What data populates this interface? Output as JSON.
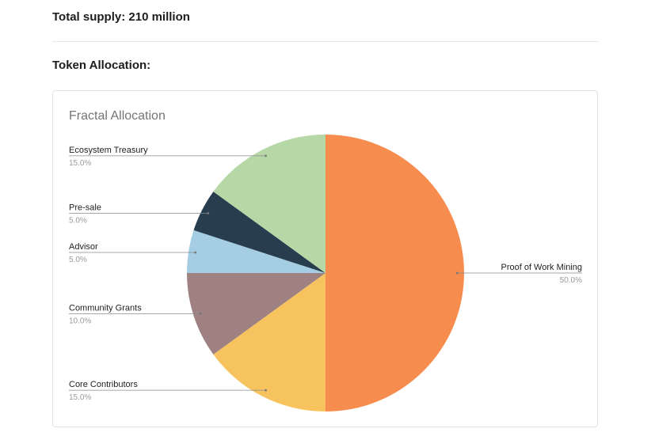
{
  "page": {
    "supply_text": "Total supply: 210 million",
    "allocation_heading": "Token Allocation:"
  },
  "chart_data": {
    "type": "pie",
    "title": "Fractal Allocation",
    "slices": [
      {
        "label": "Proof of Work Mining",
        "value": 50.0,
        "pct_label": "50.0%",
        "color": "#f68c4e"
      },
      {
        "label": "Core Contributors",
        "value": 15.0,
        "pct_label": "15.0%",
        "color": "#f7c35f"
      },
      {
        "label": "Community Grants",
        "value": 10.0,
        "pct_label": "10.0%",
        "color": "#9e8180"
      },
      {
        "label": "Advisor",
        "value": 5.0,
        "pct_label": "5.0%",
        "color": "#a5cde3"
      },
      {
        "label": "Pre-sale",
        "value": 5.0,
        "pct_label": "5.0%",
        "color": "#283e4e"
      },
      {
        "label": "Ecosystem Treasury",
        "value": 15.0,
        "pct_label": "15.0%",
        "color": "#b5d8a6"
      }
    ],
    "start_angle_deg": 0,
    "direction": "clockwise",
    "legend": "none"
  }
}
